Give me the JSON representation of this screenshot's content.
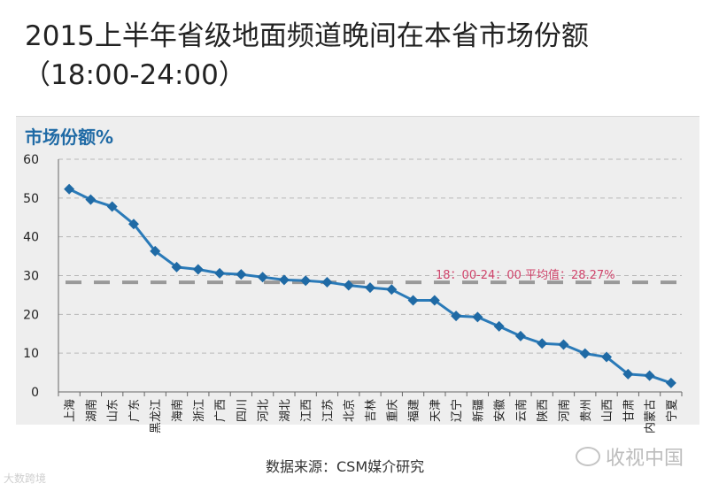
{
  "title": "2015上半年省级地面频道晚间在本省市场份额",
  "subtitle": "（18:00-24:00）",
  "source": "数据来源：CSM媒介研究",
  "watermark_left": "大数跨境",
  "watermark_right": "收视中国",
  "colors": {
    "line": "#2a7ab8",
    "marker": "#1f6aa5",
    "average": "#999999",
    "average_label": "#d0446b",
    "ylabel": "#1f6aa5",
    "panel": "#eeeeee"
  },
  "chart_data": {
    "type": "line",
    "ylabel": "市场份额%",
    "xlabel": "",
    "ylim": [
      0,
      60
    ],
    "yticks": [
      0,
      10,
      20,
      30,
      40,
      50,
      60
    ],
    "grid": true,
    "categories": [
      "上海",
      "湖南",
      "山东",
      "广东",
      "黑龙江",
      "海南",
      "浙江",
      "广西",
      "四川",
      "河北",
      "湖北",
      "江西",
      "江苏",
      "北京",
      "吉林",
      "重庆",
      "福建",
      "天津",
      "辽宁",
      "新疆",
      "安徽",
      "云南",
      "陕西",
      "河南",
      "贵州",
      "山西",
      "甘肃",
      "内蒙古",
      "宁夏"
    ],
    "series": [
      {
        "values": [
          52.3,
          49.6,
          47.8,
          43.3,
          36.3,
          32.2,
          31.6,
          30.6,
          30.3,
          29.6,
          28.9,
          28.7,
          28.3,
          27.5,
          26.9,
          26.4,
          23.6,
          23.6,
          19.6,
          19.3,
          16.9,
          14.4,
          12.5,
          12.2,
          9.9,
          9.0,
          4.6,
          4.2,
          2.3
        ]
      }
    ],
    "average": {
      "value": 28.27,
      "label": "18：00-24：00  平均值：28.27%"
    }
  }
}
